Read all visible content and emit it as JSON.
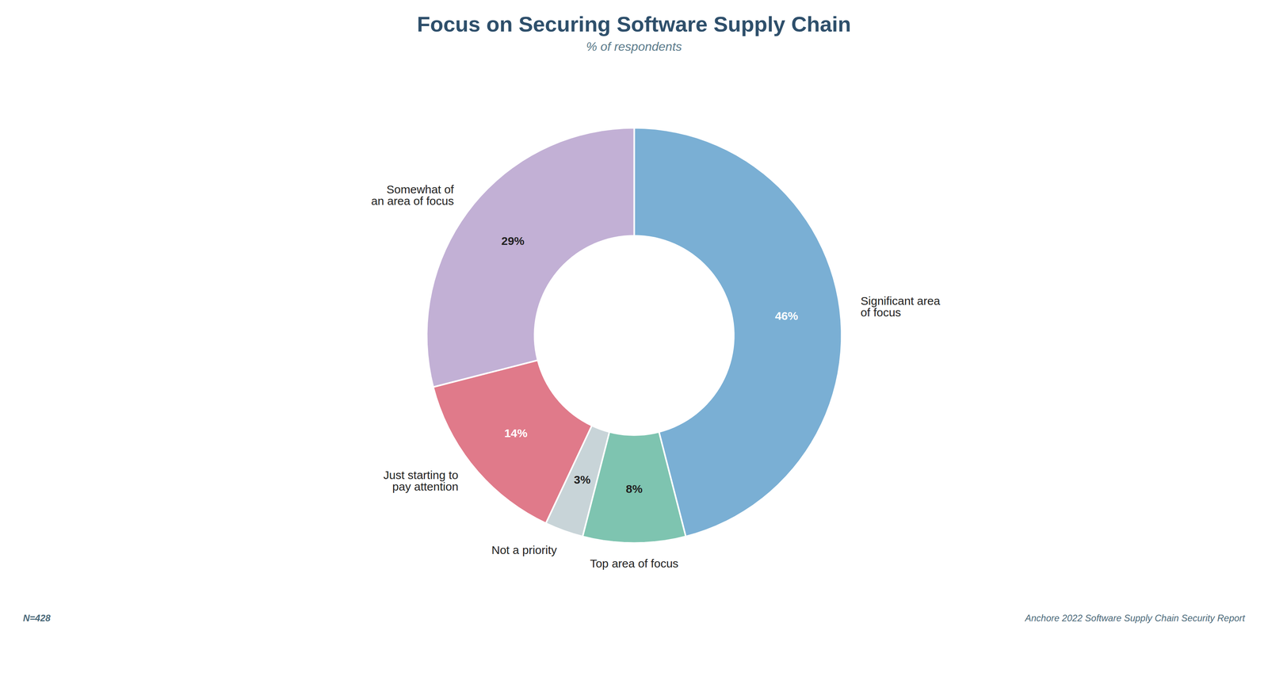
{
  "chart_data": {
    "type": "donut",
    "title": "Focus on Securing Software Supply Chain",
    "subtitle": "% of respondents",
    "categories": [
      "Significant area\nof focus",
      "Top area of focus",
      "Not a priority",
      "Just starting to\npay attention",
      "Somewhat of\nan area of focus"
    ],
    "values": [
      46,
      8,
      3,
      14,
      29
    ],
    "colors": [
      "#7aafd4",
      "#7ec4b0",
      "#c8d4d8",
      "#e07a8a",
      "#c2b0d5"
    ],
    "value_labels": [
      "46%",
      "8%",
      "3%",
      "14%",
      "29%"
    ],
    "data_labels": true,
    "annotations": [
      "N=428",
      "Anchore 2022 Software Supply Chain Security Report"
    ]
  }
}
